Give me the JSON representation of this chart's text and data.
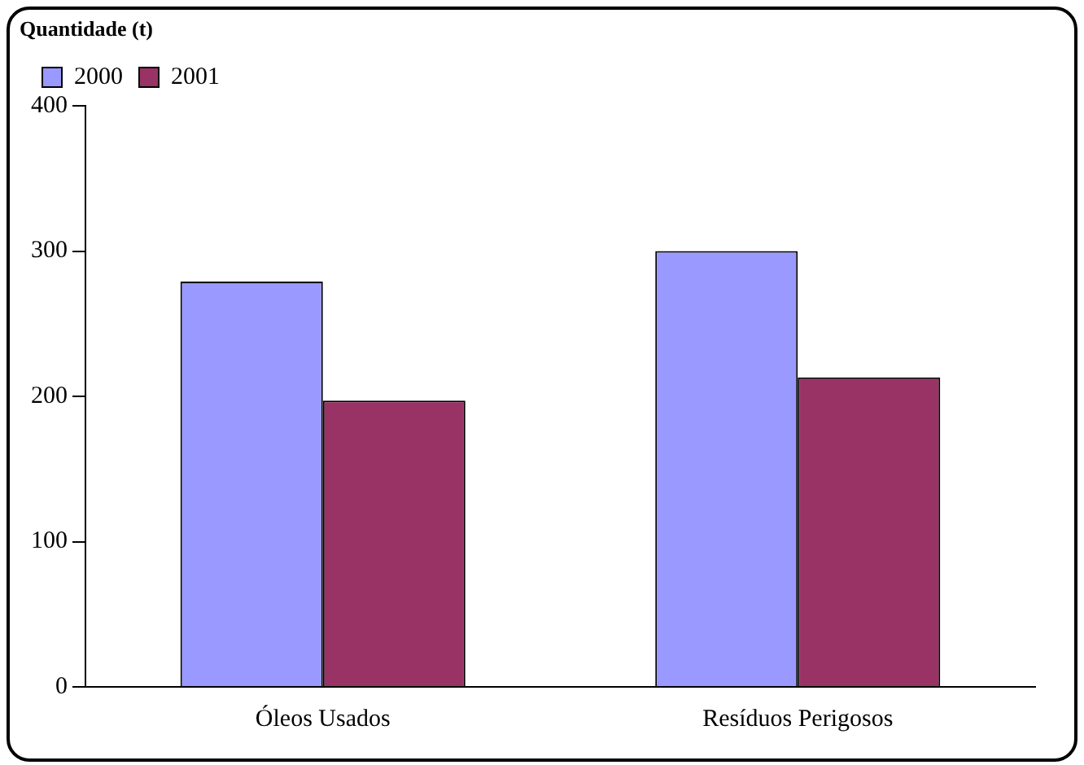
{
  "chart_data": {
    "type": "bar",
    "ylabel": "Quantidade (t)",
    "categories": [
      "Óleos Usados",
      "Resíduos Perigosos"
    ],
    "series": [
      {
        "name": "2000",
        "color": "#9999ff",
        "values": [
          279,
          300
        ]
      },
      {
        "name": "2001",
        "color": "#993366",
        "values": [
          197,
          213
        ]
      }
    ],
    "ylim": [
      0,
      400
    ],
    "yticks": [
      0,
      100,
      200,
      300,
      400
    ],
    "grid": false,
    "legend": "top left"
  }
}
